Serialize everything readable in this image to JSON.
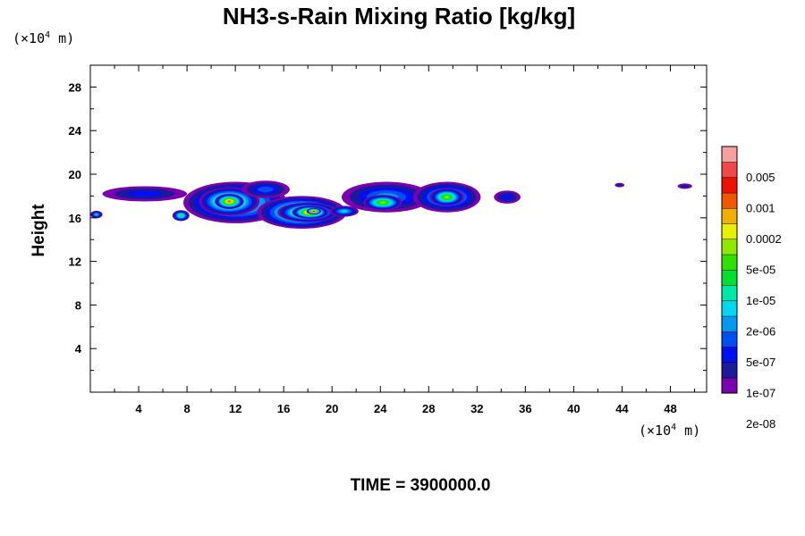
{
  "chart_data": {
    "type": "heatmap",
    "title": "NH3-s-Rain Mixing Ratio [kg/kg]",
    "ylabel": "Height",
    "xunit": {
      "prefix": "(×10",
      "exp": "4",
      "suffix": " m)"
    },
    "yunit": {
      "prefix": "(×10",
      "exp": "4",
      "suffix": " m)"
    },
    "footer": "TIME = 3900000.0",
    "xlim": [
      0,
      51
    ],
    "ylim": [
      0,
      30
    ],
    "xticks": [
      4,
      8,
      12,
      16,
      20,
      24,
      28,
      32,
      36,
      40,
      44,
      48
    ],
    "xtick_labels": [
      "4",
      "8",
      "12",
      "16",
      "20",
      "24",
      "28",
      "32",
      "36",
      "40",
      "44",
      "48"
    ],
    "yticks": [
      4,
      8,
      12,
      16,
      20,
      24,
      28
    ],
    "ytick_labels": [
      "4",
      "8",
      "12",
      "16",
      "20",
      "24",
      "28"
    ],
    "colorbar": {
      "labels": [
        "0.005",
        "0.001",
        "0.0002",
        "5e-05",
        "1e-05",
        "2e-06",
        "5e-07",
        "1e-07",
        "2e-08"
      ],
      "colors": [
        "#7a00b0",
        "#1a1a9a",
        "#0010f0",
        "#0050f0",
        "#0098f0",
        "#00d8f0",
        "#00e8a8",
        "#00e030",
        "#30e000",
        "#90e800",
        "#e8f000",
        "#f0b000",
        "#f05800",
        "#f01000",
        "#f04848",
        "#f8a0a0"
      ]
    },
    "features": [
      {
        "x": 0.5,
        "y": 16.3,
        "rx": 0.5,
        "ry": 0.35,
        "level": 5
      },
      {
        "x": 4.5,
        "y": 18.2,
        "rx": 3.5,
        "ry": 0.7,
        "level": 2
      },
      {
        "x": 7.5,
        "y": 16.2,
        "rx": 0.7,
        "ry": 0.5,
        "level": 7
      },
      {
        "x": 12.0,
        "y": 17.4,
        "rx": 4.3,
        "ry": 1.9,
        "level": 8
      },
      {
        "x": 11.5,
        "y": 17.5,
        "rx": 2.5,
        "ry": 1.3,
        "level": 10
      },
      {
        "x": 11.5,
        "y": 17.5,
        "rx": 1.2,
        "ry": 0.7,
        "level": 12
      },
      {
        "x": 14.5,
        "y": 18.6,
        "rx": 2.0,
        "ry": 0.8,
        "level": 3
      },
      {
        "x": 17.5,
        "y": 16.5,
        "rx": 3.7,
        "ry": 1.5,
        "level": 9
      },
      {
        "x": 18.0,
        "y": 16.5,
        "rx": 2.5,
        "ry": 0.9,
        "level": 11
      },
      {
        "x": 18.2,
        "y": 16.5,
        "rx": 1.5,
        "ry": 0.6,
        "level": 13
      },
      {
        "x": 18.5,
        "y": 16.6,
        "rx": 0.6,
        "ry": 0.3,
        "level": 14
      },
      {
        "x": 21.0,
        "y": 16.6,
        "rx": 1.2,
        "ry": 0.5,
        "level": 5
      },
      {
        "x": 24.5,
        "y": 17.9,
        "rx": 3.7,
        "ry": 1.4,
        "level": 4
      },
      {
        "x": 24.2,
        "y": 17.4,
        "rx": 1.6,
        "ry": 0.7,
        "level": 9
      },
      {
        "x": 29.5,
        "y": 17.9,
        "rx": 2.8,
        "ry": 1.4,
        "level": 6
      },
      {
        "x": 29.5,
        "y": 17.9,
        "rx": 1.4,
        "ry": 0.8,
        "level": 9
      },
      {
        "x": 34.5,
        "y": 17.9,
        "rx": 1.1,
        "ry": 0.6,
        "level": 2
      },
      {
        "x": 43.8,
        "y": 19.0,
        "rx": 0.4,
        "ry": 0.2,
        "level": 1
      },
      {
        "x": 49.2,
        "y": 18.9,
        "rx": 0.6,
        "ry": 0.25,
        "level": 1
      }
    ]
  }
}
